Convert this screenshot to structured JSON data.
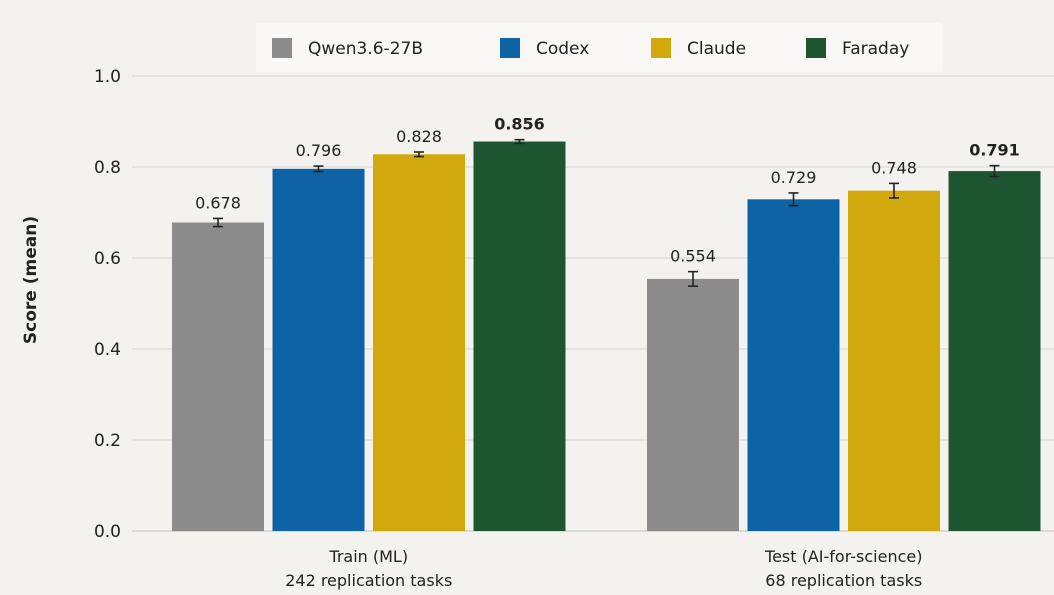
{
  "chart_data": {
    "type": "bar",
    "title": "",
    "ylabel": "Score (mean)",
    "xlabel": "",
    "ylim": [
      0,
      1.0
    ],
    "yticks": [
      "0.0",
      "0.2",
      "0.4",
      "0.6",
      "0.8",
      "1.0"
    ],
    "grid": true,
    "legend_position": "top",
    "categories": [
      {
        "line1": "Train (ML)",
        "line2": "242 replication tasks"
      },
      {
        "line1": "Test (AI-for-science)",
        "line2": "68 replication tasks"
      }
    ],
    "series": [
      {
        "name": "Qwen3.6-27B",
        "color": "#8c8c8c",
        "values": [
          0.678,
          0.554
        ],
        "labels": [
          "0.678",
          "0.554"
        ],
        "err": [
          0.009,
          0.016
        ]
      },
      {
        "name": "Codex",
        "color": "#0e63a6",
        "values": [
          0.796,
          0.729
        ],
        "labels": [
          "0.796",
          "0.729"
        ],
        "err": [
          0.006,
          0.014
        ]
      },
      {
        "name": "Claude",
        "color": "#d1a90f",
        "values": [
          0.828,
          0.748
        ],
        "labels": [
          "0.828",
          "0.748"
        ],
        "err": [
          0.005,
          0.016
        ]
      },
      {
        "name": "Faraday",
        "color": "#1e5631",
        "values": [
          0.856,
          0.791
        ],
        "labels": [
          "0.856",
          "0.791"
        ],
        "err": [
          0.004,
          0.012
        ],
        "bold_labels": true
      }
    ]
  }
}
